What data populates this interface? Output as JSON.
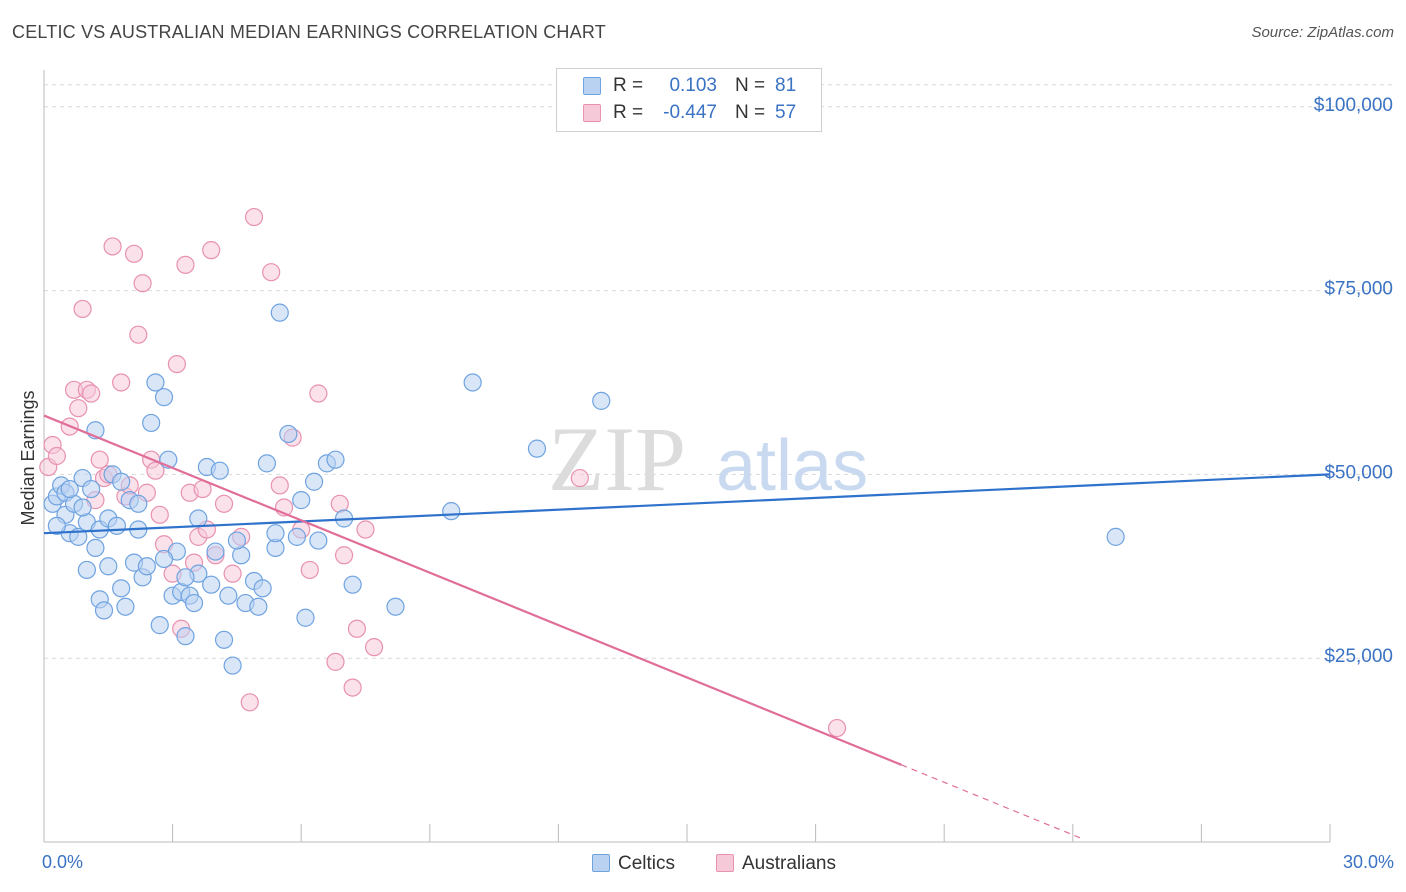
{
  "title": "CELTIC VS AUSTRALIAN MEDIAN EARNINGS CORRELATION CHART",
  "source": "Source: ZipAtlas.com",
  "colors": {
    "blue": "#6fa3e0",
    "blue_fill": "#b9d2f2",
    "blue_line": "#2f72cc",
    "pink": "#e891b0",
    "pink_fill": "#f6c9d8",
    "pink_line": "#e06e98",
    "axis_text": "#3a72c4",
    "grid": "#d9d9d9"
  },
  "legend": {
    "rows": [
      {
        "r_label": "R =",
        "r_value": "0.103",
        "n_label": "N =",
        "n_value": "81"
      },
      {
        "r_label": "R =",
        "r_value": "-0.447",
        "n_label": "N =",
        "n_value": "57"
      }
    ]
  },
  "bottom_legend": {
    "celtics": "Celtics",
    "australians": "Australians"
  },
  "x_axis": {
    "min_label": "0.0%",
    "max_label": "30.0%"
  },
  "watermark": {
    "zip": "ZIP",
    "atlas": "atlas"
  },
  "chart_data": {
    "type": "scatter",
    "title": "CELTIC VS AUSTRALIAN MEDIAN EARNINGS CORRELATION CHART",
    "xlabel": "",
    "ylabel": "Median Earnings",
    "xlim": [
      0,
      30
    ],
    "ylim": [
      0,
      105000
    ],
    "y_ticks": [
      25000,
      50000,
      75000,
      100000
    ],
    "y_tick_labels": [
      "$25,000",
      "$50,000",
      "$75,000",
      "$100,000"
    ],
    "grid": true,
    "series": [
      {
        "name": "Celtics",
        "r": 0.103,
        "n": 81,
        "trend": {
          "x": [
            0,
            30
          ],
          "y": [
            42000,
            50000
          ]
        },
        "points": [
          [
            0.2,
            46000
          ],
          [
            0.3,
            47000
          ],
          [
            0.4,
            48500
          ],
          [
            0.5,
            47500
          ],
          [
            0.5,
            44500
          ],
          [
            0.6,
            42000
          ],
          [
            0.7,
            46000
          ],
          [
            0.8,
            41500
          ],
          [
            0.9,
            49500
          ],
          [
            1.0,
            43500
          ],
          [
            1.0,
            37000
          ],
          [
            1.1,
            48000
          ],
          [
            1.2,
            56000
          ],
          [
            1.3,
            42500
          ],
          [
            1.3,
            33000
          ],
          [
            1.4,
            31500
          ],
          [
            1.5,
            44000
          ],
          [
            1.5,
            37500
          ],
          [
            1.6,
            50000
          ],
          [
            1.7,
            43000
          ],
          [
            1.8,
            34500
          ],
          [
            1.9,
            32000
          ],
          [
            2.0,
            46500
          ],
          [
            2.1,
            38000
          ],
          [
            2.2,
            42500
          ],
          [
            2.3,
            36000
          ],
          [
            2.4,
            37500
          ],
          [
            2.5,
            57000
          ],
          [
            2.6,
            62500
          ],
          [
            2.7,
            29500
          ],
          [
            2.8,
            60500
          ],
          [
            2.9,
            52000
          ],
          [
            3.0,
            33500
          ],
          [
            3.1,
            39500
          ],
          [
            3.2,
            34000
          ],
          [
            3.3,
            28000
          ],
          [
            3.4,
            33500
          ],
          [
            3.5,
            32500
          ],
          [
            3.6,
            36500
          ],
          [
            3.8,
            51000
          ],
          [
            3.9,
            35000
          ],
          [
            4.0,
            39500
          ],
          [
            4.1,
            50500
          ],
          [
            4.2,
            27500
          ],
          [
            4.3,
            33500
          ],
          [
            4.4,
            24000
          ],
          [
            4.6,
            39000
          ],
          [
            4.7,
            32500
          ],
          [
            4.9,
            35500
          ],
          [
            5.0,
            32000
          ],
          [
            5.1,
            34500
          ],
          [
            5.2,
            51500
          ],
          [
            5.4,
            40000
          ],
          [
            5.5,
            72000
          ],
          [
            5.7,
            55500
          ],
          [
            5.9,
            41500
          ],
          [
            6.1,
            30500
          ],
          [
            6.3,
            49000
          ],
          [
            6.4,
            41000
          ],
          [
            6.6,
            51500
          ],
          [
            6.8,
            52000
          ],
          [
            7.2,
            35000
          ],
          [
            8.2,
            32000
          ],
          [
            9.5,
            45000
          ],
          [
            10.0,
            62500
          ],
          [
            11.5,
            53500
          ],
          [
            13.0,
            60000
          ],
          [
            25.0,
            41500
          ],
          [
            1.8,
            49000
          ],
          [
            2.2,
            46000
          ],
          [
            3.6,
            44000
          ],
          [
            4.5,
            41000
          ],
          [
            0.9,
            45500
          ],
          [
            1.2,
            40000
          ],
          [
            2.8,
            38500
          ],
          [
            3.3,
            36000
          ],
          [
            5.4,
            42000
          ],
          [
            6.0,
            46500
          ],
          [
            0.3,
            43000
          ],
          [
            0.6,
            48000
          ],
          [
            7.0,
            44000
          ]
        ]
      },
      {
        "name": "Australians",
        "r": -0.447,
        "n": 57,
        "trend": {
          "x": [
            0,
            20
          ],
          "y": [
            58000,
            10500
          ]
        },
        "trend_dashed": {
          "x": [
            20,
            24.2
          ],
          "y": [
            10500,
            500
          ]
        },
        "points": [
          [
            0.1,
            51000
          ],
          [
            0.2,
            54000
          ],
          [
            0.3,
            52500
          ],
          [
            0.6,
            56500
          ],
          [
            0.7,
            61500
          ],
          [
            0.8,
            59000
          ],
          [
            0.9,
            72500
          ],
          [
            1.0,
            61500
          ],
          [
            1.1,
            61000
          ],
          [
            1.2,
            46500
          ],
          [
            1.3,
            52000
          ],
          [
            1.4,
            49500
          ],
          [
            1.5,
            50000
          ],
          [
            1.6,
            81000
          ],
          [
            1.8,
            62500
          ],
          [
            1.9,
            47000
          ],
          [
            2.0,
            48500
          ],
          [
            2.1,
            80000
          ],
          [
            2.2,
            69000
          ],
          [
            2.3,
            76000
          ],
          [
            2.4,
            47500
          ],
          [
            2.5,
            52000
          ],
          [
            2.6,
            50500
          ],
          [
            2.7,
            44500
          ],
          [
            2.8,
            40500
          ],
          [
            3.0,
            36500
          ],
          [
            3.1,
            65000
          ],
          [
            3.2,
            29000
          ],
          [
            3.3,
            78500
          ],
          [
            3.4,
            47500
          ],
          [
            3.5,
            38000
          ],
          [
            3.6,
            41500
          ],
          [
            3.7,
            48000
          ],
          [
            3.8,
            42500
          ],
          [
            3.9,
            80500
          ],
          [
            4.0,
            39000
          ],
          [
            4.2,
            46000
          ],
          [
            4.4,
            36500
          ],
          [
            4.6,
            41500
          ],
          [
            4.8,
            19000
          ],
          [
            4.9,
            85000
          ],
          [
            5.3,
            77500
          ],
          [
            5.5,
            48500
          ],
          [
            5.6,
            45500
          ],
          [
            5.8,
            55000
          ],
          [
            6.0,
            42500
          ],
          [
            6.2,
            37000
          ],
          [
            6.4,
            61000
          ],
          [
            6.8,
            24500
          ],
          [
            6.9,
            46000
          ],
          [
            7.0,
            39000
          ],
          [
            7.2,
            21000
          ],
          [
            7.3,
            29000
          ],
          [
            7.5,
            42500
          ],
          [
            7.7,
            26500
          ],
          [
            12.5,
            49500
          ],
          [
            18.5,
            15500
          ]
        ]
      }
    ]
  }
}
